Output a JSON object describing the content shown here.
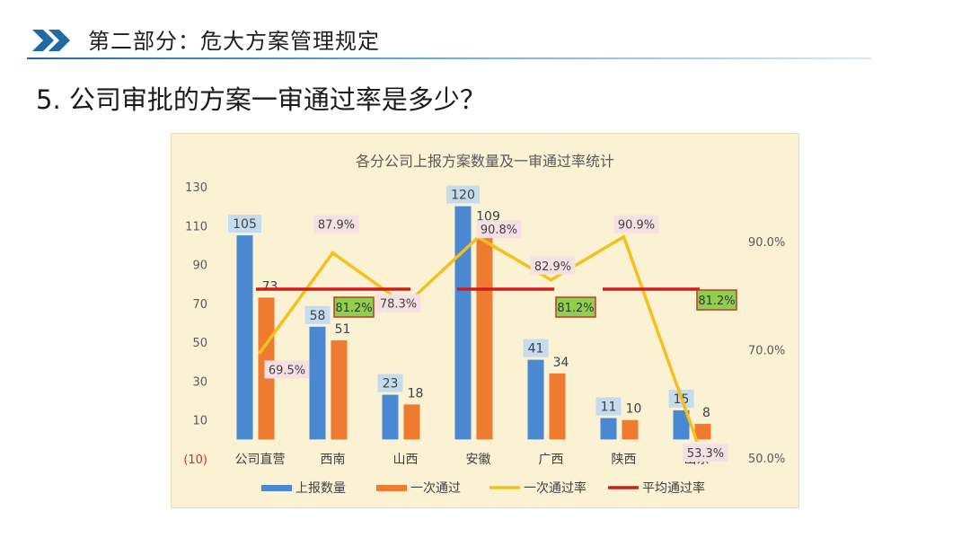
{
  "header": {
    "title": "第二部分：危大方案管理规定"
  },
  "question": "5. 公司审批的方案一审通过率是多少？",
  "chart_data": {
    "type": "bar",
    "title": "各分公司上报方案数量及一审通过率统计",
    "categories": [
      "公司直营",
      "西南",
      "山西",
      "安徽",
      "广西",
      "陕西",
      "山东"
    ],
    "series": [
      {
        "name": "上报数量",
        "type": "bar",
        "axis": "left",
        "color": "#4a88d2",
        "values": [
          105,
          58,
          23,
          120,
          41,
          11,
          15
        ]
      },
      {
        "name": "一次通过",
        "type": "bar",
        "axis": "left",
        "color": "#ee7b30",
        "values": [
          73,
          51,
          18,
          109,
          34,
          10,
          8
        ]
      },
      {
        "name": "一次通过率",
        "type": "line",
        "axis": "right",
        "color": "#f4c01e",
        "values": [
          69.5,
          87.9,
          78.3,
          90.8,
          82.9,
          90.9,
          53.3
        ]
      },
      {
        "name": "平均通过率",
        "type": "line",
        "axis": "right",
        "color": "#d01c1c",
        "values": [
          81.2,
          81.2,
          81.2,
          81.2,
          81.2,
          81.2,
          81.2
        ]
      }
    ],
    "rate_labels": [
      "69.5%",
      "87.9%",
      "78.3%",
      "90.8%",
      "82.9%",
      "90.9%",
      "53.3%"
    ],
    "avg_label": "81.2%",
    "left_axis": {
      "min": -10,
      "max": 130,
      "ticks": [
        "(10)",
        "10",
        "30",
        "50",
        "70",
        "90",
        "110",
        "130"
      ],
      "tick_values": [
        -10,
        10,
        30,
        50,
        70,
        90,
        110,
        130
      ]
    },
    "right_axis": {
      "ticks": [
        "50.0%",
        "70.0%",
        "90.0%"
      ],
      "tick_values": [
        50,
        70,
        90
      ],
      "min": 50,
      "max": 90
    },
    "grid": false,
    "legend_position": "bottom"
  }
}
